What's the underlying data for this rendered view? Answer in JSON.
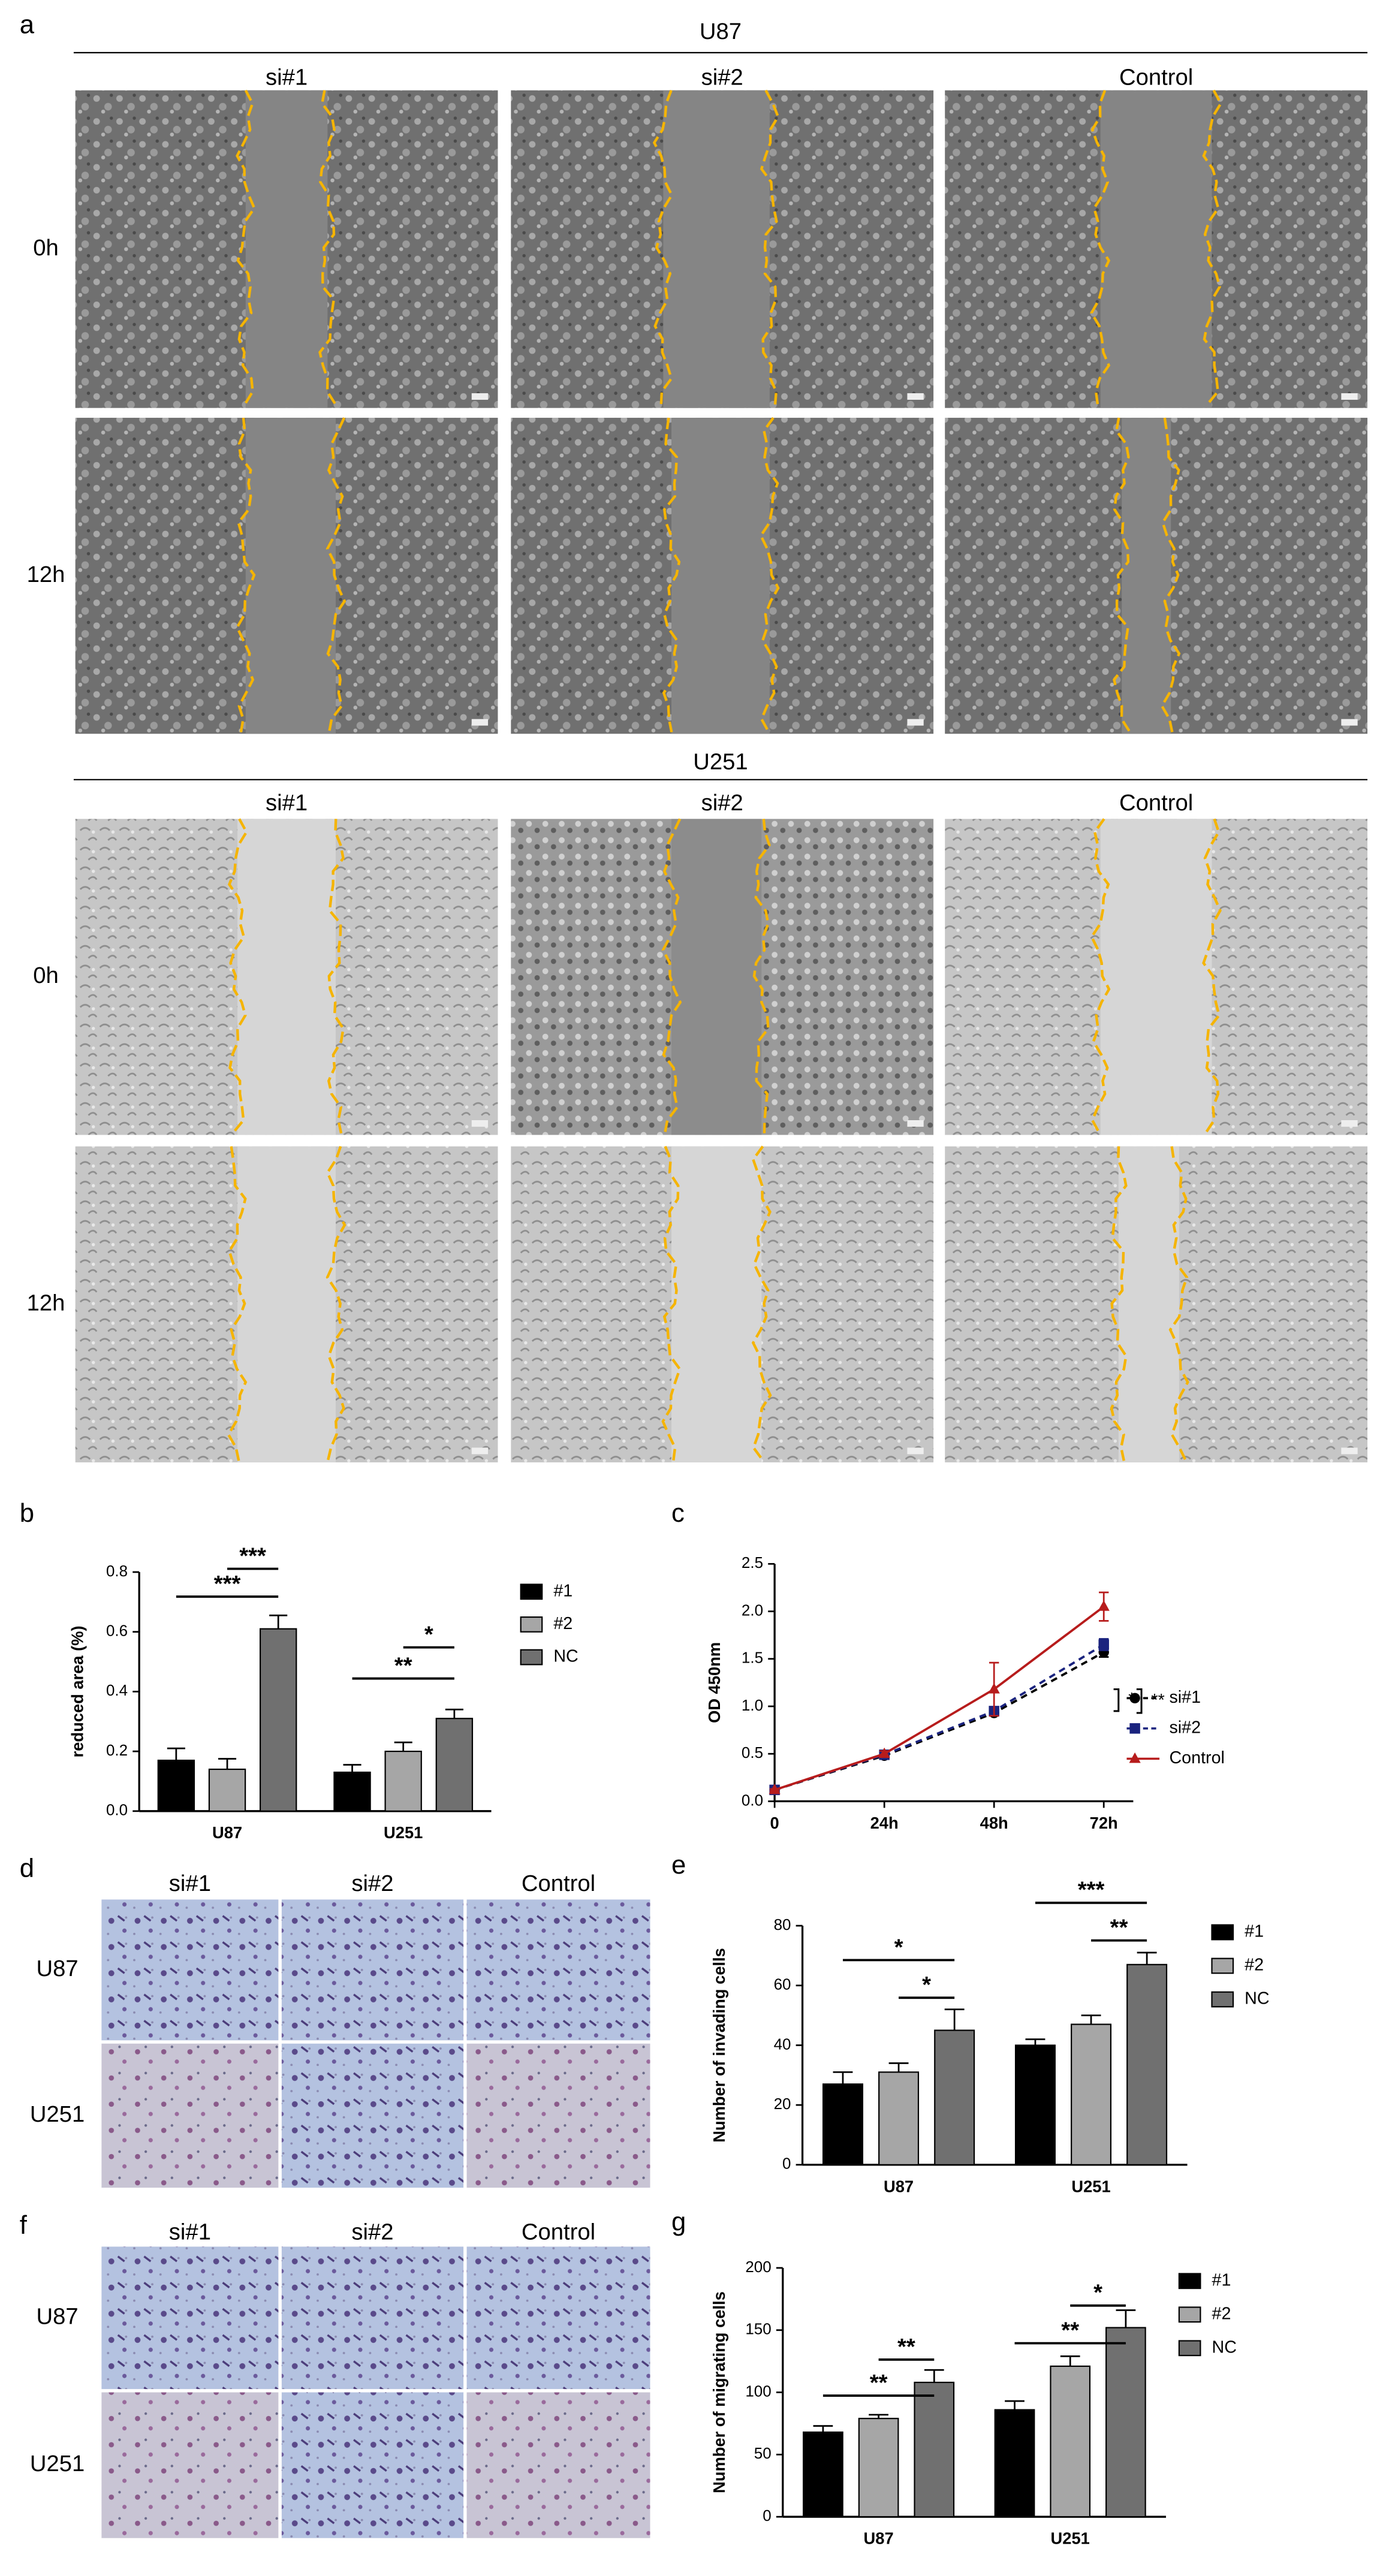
{
  "figure": {
    "a": {
      "label": "a",
      "groups": [
        {
          "title": "U87",
          "columns": [
            "si#1",
            "si#2",
            "Control"
          ],
          "rows": [
            "0h",
            "12h"
          ]
        },
        {
          "title": "U251",
          "columns": [
            "si#1",
            "si#2",
            "Control"
          ],
          "rows": [
            "0h",
            "12h"
          ]
        }
      ]
    },
    "d": {
      "label": "d",
      "columns": [
        "si#1",
        "si#2",
        "Control"
      ],
      "rows": [
        "U87",
        "U251"
      ]
    },
    "f": {
      "label": "f",
      "columns": [
        "si#1",
        "si#2",
        "Control"
      ],
      "rows": [
        "U87",
        "U251"
      ]
    }
  },
  "chart_data": [
    {
      "panel": "b",
      "type": "bar",
      "ylabel": "reduced area (%)",
      "categories": [
        "U87",
        "U251"
      ],
      "series": [
        {
          "name": "#1",
          "color": "#000000",
          "values": [
            0.17,
            0.13
          ],
          "errors": [
            0.04,
            0.025
          ]
        },
        {
          "name": "#2",
          "color": "#a6a6a6",
          "values": [
            0.14,
            0.2
          ],
          "errors": [
            0.035,
            0.03
          ]
        },
        {
          "name": "NC",
          "color": "#707070",
          "values": [
            0.61,
            0.31
          ],
          "errors": [
            0.045,
            0.03
          ]
        }
      ],
      "ylim": [
        0,
        0.8
      ],
      "yticks": [
        {
          "value": 0,
          "label": "0.0"
        },
        0.2,
        0.4,
        0.6,
        0.8
      ],
      "annotations": [
        "***",
        "***",
        "**",
        "*"
      ],
      "legend": "right"
    },
    {
      "panel": "c",
      "type": "line",
      "ylabel": "OD 450nm",
      "categories": [
        "0",
        "24h",
        "48h",
        "72h"
      ],
      "series": [
        {
          "name": "si#1",
          "color": "#000000",
          "marker": "circle",
          "dash": true,
          "values": [
            0.12,
            0.48,
            0.93,
            1.57
          ],
          "errors": [
            0.01,
            0.02,
            0.03,
            0.05
          ]
        },
        {
          "name": "si#2",
          "color": "#1a237e",
          "marker": "square",
          "dash": true,
          "values": [
            0.12,
            0.49,
            0.95,
            1.65
          ],
          "errors": [
            0.01,
            0.02,
            0.03,
            0.06
          ]
        },
        {
          "name": "Control",
          "color": "#b71c1c",
          "marker": "triangle",
          "dash": false,
          "values": [
            0.12,
            0.5,
            1.18,
            2.05
          ],
          "errors": [
            0.01,
            0.03,
            0.28,
            0.15
          ]
        }
      ],
      "ylim": [
        0,
        2.5
      ],
      "yticks": [
        {
          "value": 0,
          "label": "0.0"
        },
        0.5,
        {
          "value": 1,
          "label": "1.0"
        },
        1.5,
        {
          "value": 2,
          "label": "2.0"
        },
        2.5
      ],
      "annotations": [
        "*",
        "**"
      ],
      "legend": "right"
    },
    {
      "panel": "e",
      "type": "bar",
      "ylabel": "Number of invading cells",
      "categories": [
        "U87",
        "U251"
      ],
      "series": [
        {
          "name": "#1",
          "color": "#000000",
          "values": [
            27,
            40
          ],
          "errors": [
            4,
            2
          ]
        },
        {
          "name": "#2",
          "color": "#a6a6a6",
          "values": [
            31,
            47
          ],
          "errors": [
            3,
            3
          ]
        },
        {
          "name": "NC",
          "color": "#707070",
          "values": [
            45,
            67
          ],
          "errors": [
            7,
            4
          ]
        }
      ],
      "ylim": [
        0,
        80
      ],
      "yticks": [
        0,
        20,
        40,
        60,
        80
      ],
      "annotations": [
        "*",
        "*",
        "***",
        "**"
      ],
      "legend": "right"
    },
    {
      "panel": "g",
      "type": "bar",
      "ylabel": "Number of migrating cells",
      "categories": [
        "U87",
        "U251"
      ],
      "series": [
        {
          "name": "#1",
          "color": "#000000",
          "values": [
            68,
            86
          ],
          "errors": [
            5,
            7
          ]
        },
        {
          "name": "#2",
          "color": "#a6a6a6",
          "values": [
            79,
            121
          ],
          "errors": [
            3,
            8
          ]
        },
        {
          "name": "NC",
          "color": "#707070",
          "values": [
            108,
            152
          ],
          "errors": [
            10,
            14
          ]
        }
      ],
      "ylim": [
        0,
        200
      ],
      "yticks": [
        0,
        50,
        100,
        150,
        200
      ],
      "annotations": [
        "**",
        "**",
        "**",
        "*"
      ],
      "legend": "right"
    }
  ]
}
